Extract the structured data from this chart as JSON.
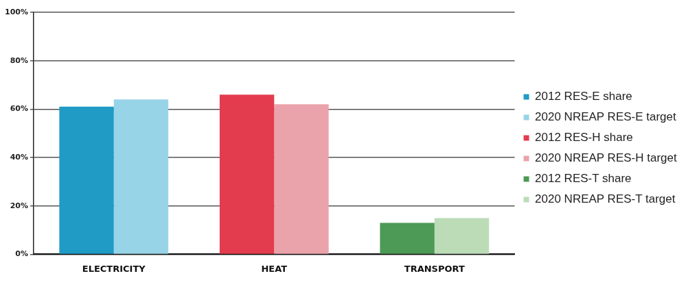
{
  "chart_data": {
    "type": "bar",
    "categories": [
      "ELECTRICITY",
      "HEAT",
      "TRANSPORT"
    ],
    "series": [
      {
        "name": "2012 RES-E share",
        "color": "#1f9bc6",
        "values": [
          61,
          null,
          null
        ]
      },
      {
        "name": "2020 NREAP RES-E target",
        "color": "#98d4e8",
        "values": [
          64,
          null,
          null
        ]
      },
      {
        "name": "2012 RES-H share",
        "color": "#e33c4e",
        "values": [
          null,
          66,
          null
        ]
      },
      {
        "name": "2020 NREAP RES-H target",
        "color": "#eba3ab",
        "values": [
          null,
          62,
          null
        ]
      },
      {
        "name": "2012 RES-T share",
        "color": "#4c9a55",
        "values": [
          null,
          null,
          13
        ]
      },
      {
        "name": "2020 NREAP RES-T target",
        "color": "#bcdcb8",
        "values": [
          null,
          null,
          15
        ]
      }
    ],
    "ylim": [
      0,
      100
    ],
    "yticks": [
      {
        "value": 0,
        "label": "0%"
      },
      {
        "value": 20,
        "label": "20%"
      },
      {
        "value": 40,
        "label": "40%"
      },
      {
        "value": 60,
        "label": "60%"
      },
      {
        "value": 80,
        "label": "80%"
      },
      {
        "value": 100,
        "label": "100%"
      }
    ],
    "grid": "y",
    "legend": "right"
  }
}
